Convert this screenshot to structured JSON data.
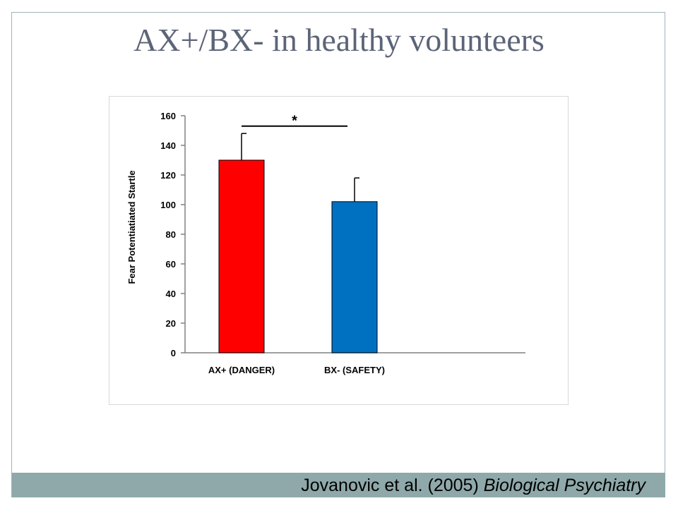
{
  "slide": {
    "title": "AX+/BX- in healthy volunteers",
    "citation_text": "Jovanovic et al. (2005) ",
    "citation_journal": "Biological Psychiatry"
  },
  "colors": {
    "frame": "#9fb3bb",
    "footer": "#8fa9aa",
    "title": "#5c6478",
    "bar_danger": "#ff0000",
    "bar_safety": "#0070c0"
  },
  "chart_data": {
    "type": "bar",
    "ylabel": "Fear Potentiatiated Startle",
    "xlabel": "",
    "ylim": [
      0,
      160
    ],
    "yticks": [
      0,
      20,
      40,
      60,
      80,
      100,
      120,
      140,
      160
    ],
    "categories": [
      "AX+ (DANGER)",
      "BX- (SAFETY)"
    ],
    "values": [
      130,
      102
    ],
    "errors": [
      18,
      16
    ],
    "colors": [
      "#ff0000",
      "#0070c0"
    ],
    "significance": {
      "between": [
        0,
        1
      ],
      "y": 153,
      "label": "*"
    },
    "grid": false,
    "legend": "none"
  }
}
